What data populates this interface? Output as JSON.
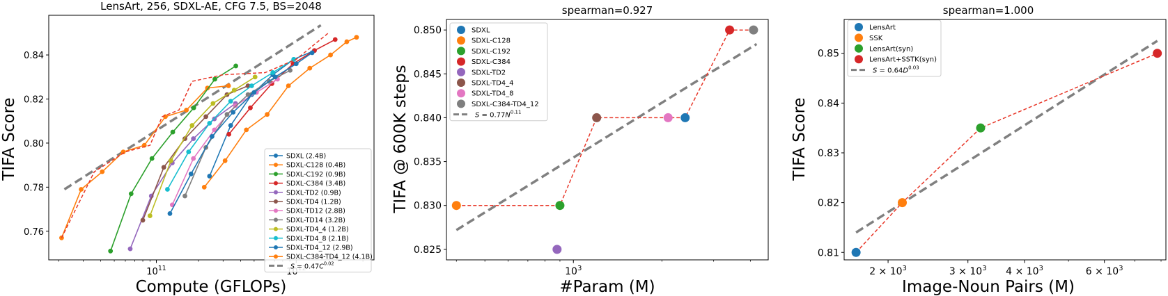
{
  "chart_data": [
    {
      "type": "line",
      "title": "LensArt, 256, SDXL-AE, CFG 7.5, BS=2048",
      "xlabel": "Compute (GFLOPs)",
      "ylabel": "TIFA Score",
      "xscale": "log",
      "xlim": [
        17000000000,
        3600000000000
      ],
      "ylim": [
        0.747,
        0.858
      ],
      "xticks": [
        {
          "v": 100000000000,
          "base": "10",
          "exp": "11"
        },
        {
          "v": 1000000000000,
          "base": "10",
          "exp": "12"
        }
      ],
      "yticks": [
        {
          "v": 0.76,
          "label": "0.76"
        },
        {
          "v": 0.78,
          "label": "0.78"
        },
        {
          "v": 0.8,
          "label": "0.80"
        },
        {
          "v": 0.82,
          "label": "0.82"
        },
        {
          "v": 0.84,
          "label": "0.84"
        }
      ],
      "legend_position": "bottom-right",
      "fit": {
        "label_main": "S = 0.47C",
        "label_exp": "0.02",
        "x": [
          22000000000,
          1500000000000
        ],
        "y": [
          0.779,
          0.8535
        ],
        "color": "#808080"
      },
      "frontier": {
        "color": "#e8382a",
        "x": [
          21000000000,
          36000000000,
          60000000000,
          90000000000,
          110000000000,
          145000000000,
          180000000000,
          300000000000,
          600000000000,
          1000000000000,
          1700000000000
        ],
        "y": [
          0.757,
          0.787,
          0.796,
          0.799,
          0.812,
          0.815,
          0.828,
          0.831,
          0.832,
          0.838,
          0.85
        ]
      },
      "series": [
        {
          "name": "SDXL (2.4B)",
          "color": "#1f77b4",
          "x": [
            240000000000,
            340000000000,
            480000000000,
            680000000000,
            960000000000,
            1350000000000
          ],
          "y": [
            0.785,
            0.808,
            0.822,
            0.831,
            0.838,
            0.842
          ]
        },
        {
          "name": "SDXL-C128 (0.4B)",
          "color": "#ff7f0e",
          "x": [
            21000000000,
            29000000000,
            41000000000,
            58000000000,
            82000000000,
            116000000000,
            164000000000,
            232000000000,
            328000000000
          ],
          "y": [
            0.757,
            0.779,
            0.787,
            0.796,
            0.799,
            0.812,
            0.815,
            0.825,
            0.826
          ]
        },
        {
          "name": "SDXL-C192 (0.9B)",
          "color": "#2ca02c",
          "x": [
            47000000000,
            66000000000,
            93000000000,
            131000000000,
            185000000000,
            262000000000,
            370000000000
          ],
          "y": [
            0.751,
            0.777,
            0.793,
            0.805,
            0.816,
            0.829,
            0.835
          ]
        },
        {
          "name": "SDXL-C384 (3.4B)",
          "color": "#d62728",
          "x": [
            330000000000,
            470000000000,
            670000000000,
            950000000000,
            1350000000000,
            1900000000000
          ],
          "y": [
            0.804,
            0.816,
            0.827,
            0.836,
            0.842,
            0.847
          ]
        },
        {
          "name": "SDXL-TD2 (0.9B)",
          "color": "#9467bd",
          "x": [
            65000000000,
            92000000000,
            130000000000,
            184000000000,
            260000000000,
            368000000000
          ],
          "y": [
            0.752,
            0.776,
            0.791,
            0.802,
            0.811,
            0.818
          ]
        },
        {
          "name": "SDXL-TD4 (1.2B)",
          "color": "#8c564b",
          "x": [
            80000000000,
            113000000000,
            160000000000,
            226000000000,
            320000000000,
            452000000000
          ],
          "y": [
            0.765,
            0.789,
            0.802,
            0.812,
            0.822,
            0.826
          ]
        },
        {
          "name": "SDXL-TD12 (2.8B)",
          "color": "#e377c2",
          "x": [
            130000000000,
            184000000000,
            260000000000,
            368000000000,
            520000000000,
            735000000000
          ],
          "y": [
            0.772,
            0.793,
            0.806,
            0.817,
            0.823,
            0.829
          ]
        },
        {
          "name": "SDXL-TD14 (3.2B)",
          "color": "#7f7f7f",
          "x": [
            160000000000,
            226000000000,
            320000000000,
            452000000000,
            640000000000,
            905000000000
          ],
          "y": [
            0.776,
            0.798,
            0.813,
            0.822,
            0.828,
            0.833
          ]
        },
        {
          "name": "SDXL-TD4_4 (1.2B)",
          "color": "#bcbd22",
          "x": [
            90000000000,
            127000000000,
            180000000000,
            254000000000,
            360000000000,
            508000000000
          ],
          "y": [
            0.767,
            0.792,
            0.808,
            0.818,
            0.824,
            0.83
          ]
        },
        {
          "name": "SDXL-TD4_8 (2.1B)",
          "color": "#17becf",
          "x": [
            120000000000,
            170000000000,
            240000000000,
            340000000000,
            480000000000,
            680000000000,
            960000000000
          ],
          "y": [
            0.779,
            0.796,
            0.809,
            0.819,
            0.826,
            0.832,
            0.838
          ]
        },
        {
          "name": "SDXL-TD4_12 (2.9B)",
          "color": "#1f77b4",
          "x": [
            125000000000,
            177000000000,
            250000000000,
            354000000000,
            500000000000,
            707000000000,
            1000000000000,
            1300000000000
          ],
          "y": [
            0.768,
            0.786,
            0.803,
            0.814,
            0.823,
            0.83,
            0.836,
            0.841
          ]
        },
        {
          "name": "SDXL-C384-TD4_12 (4.1B)",
          "color": "#ff7f0e",
          "x": [
            220000000000,
            310000000000,
            440000000000,
            620000000000,
            880000000000,
            1250000000000,
            1760000000000,
            2300000000000,
            2700000000000
          ],
          "y": [
            0.78,
            0.792,
            0.806,
            0.813,
            0.826,
            0.834,
            0.84,
            0.846,
            0.848
          ]
        }
      ]
    },
    {
      "type": "scatter",
      "title": "spearman=0.927",
      "xlabel": "#Param (M)",
      "ylabel": "TIFA @ 600K steps",
      "xscale": "log",
      "xlim": [
        370,
        4600
      ],
      "ylim": [
        0.8238,
        0.8512
      ],
      "xticks": [
        {
          "v": 1000,
          "base": "10",
          "exp": "3"
        }
      ],
      "yticks": [
        {
          "v": 0.825,
          "label": "0.825"
        },
        {
          "v": 0.83,
          "label": "0.830"
        },
        {
          "v": 0.835,
          "label": "0.835"
        },
        {
          "v": 0.84,
          "label": "0.840"
        },
        {
          "v": 0.845,
          "label": "0.845"
        },
        {
          "v": 0.85,
          "label": "0.850"
        }
      ],
      "legend_position": "top-left",
      "fit": {
        "label_main": "S = 0.77N",
        "label_exp": "0.11",
        "x": [
          400,
          4200
        ],
        "y": [
          0.8272,
          0.8484
        ],
        "color": "#808080"
      },
      "path": {
        "color": "#e8382a",
        "order": [
          1,
          2,
          5,
          6,
          0,
          3,
          7
        ]
      },
      "points": [
        {
          "name": "SDXL",
          "color": "#1f77b4",
          "x": 2400,
          "y": 0.84
        },
        {
          "name": "SDXL-C128",
          "color": "#ff7f0e",
          "x": 400,
          "y": 0.83
        },
        {
          "name": "SDXL-C192",
          "color": "#2ca02c",
          "x": 900,
          "y": 0.83
        },
        {
          "name": "SDXL-C384",
          "color": "#d62728",
          "x": 3400,
          "y": 0.85
        },
        {
          "name": "SDXL-TD2",
          "color": "#9467bd",
          "x": 880,
          "y": 0.825
        },
        {
          "name": "SDXL-TD4_4",
          "color": "#8c564b",
          "x": 1200,
          "y": 0.84
        },
        {
          "name": "SDXL-TD4_8",
          "color": "#e377c2",
          "x": 2100,
          "y": 0.84
        },
        {
          "name": "SDXL-C384-TD4_12",
          "color": "#7f7f7f",
          "x": 4100,
          "y": 0.85
        }
      ]
    },
    {
      "type": "scatter",
      "title": "spearman=1.000",
      "xlabel": "Image-Noun Pairs (M)",
      "ylabel": "TIFA Score",
      "xscale": "log",
      "xlim": [
        1600,
        8200
      ],
      "ylim": [
        0.8085,
        0.8568
      ],
      "xticks": [
        {
          "v": 2000,
          "base": "2 × 10",
          "exp": "3"
        },
        {
          "v": 3000,
          "base": "3 × 10",
          "exp": "3"
        },
        {
          "v": 4000,
          "base": "4 × 10",
          "exp": "3"
        },
        {
          "v": 6000,
          "base": "6 × 10",
          "exp": "3"
        }
      ],
      "yticks": [
        {
          "v": 0.81,
          "label": "0.81"
        },
        {
          "v": 0.82,
          "label": "0.82"
        },
        {
          "v": 0.83,
          "label": "0.83"
        },
        {
          "v": 0.84,
          "label": "0.84"
        },
        {
          "v": 0.85,
          "label": "0.85"
        }
      ],
      "legend_position": "top-left",
      "fit": {
        "label_main": "S = 0.64D",
        "label_exp": "0.03",
        "x": [
          1700,
          7850
        ],
        "y": [
          0.814,
          0.8525
        ],
        "color": "#808080"
      },
      "path": {
        "color": "#e8382a",
        "order": [
          0,
          1,
          2,
          3
        ]
      },
      "points": [
        {
          "name": "LensArt",
          "color": "#1f77b4",
          "x": 1700,
          "y": 0.81
        },
        {
          "name": "SSK",
          "color": "#ff7f0e",
          "x": 2150,
          "y": 0.82
        },
        {
          "name": "LensArt(syn)",
          "color": "#2ca02c",
          "x": 3200,
          "y": 0.835
        },
        {
          "name": "LensArt+SSTK(syn)",
          "color": "#d62728",
          "x": 7850,
          "y": 0.85
        }
      ]
    }
  ]
}
